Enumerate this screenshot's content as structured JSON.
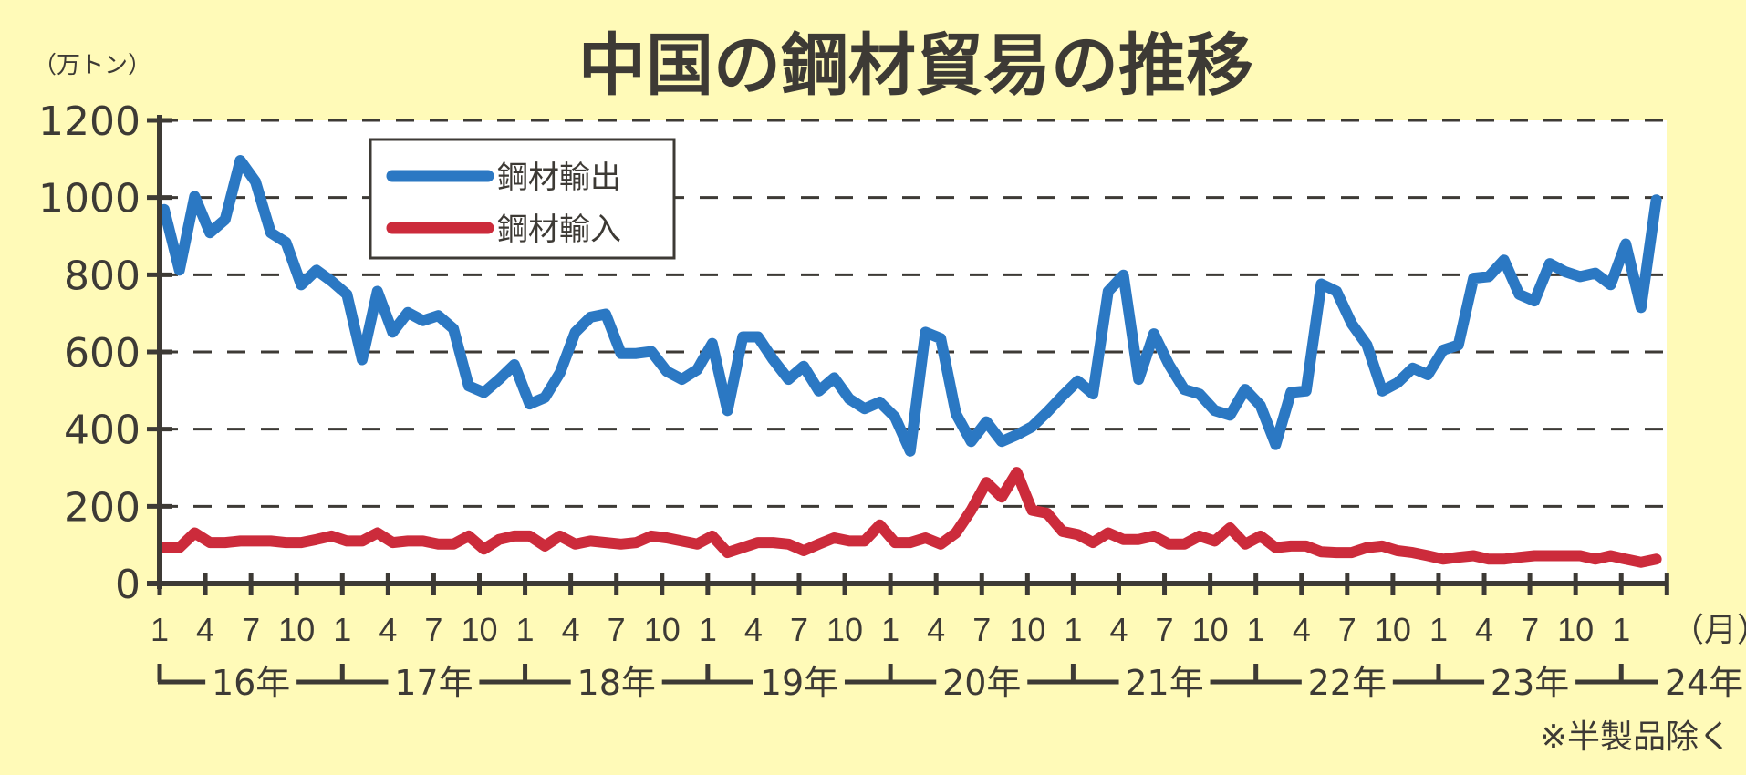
{
  "chart_data": {
    "type": "line",
    "title": "中国の鋼材貿易の推移",
    "ylabel": "（万トン）",
    "xlabel": "（月）",
    "note": "※半製品除く",
    "ylim": [
      0,
      1200
    ],
    "yticks": [
      0,
      200,
      400,
      600,
      800,
      1000,
      1200
    ],
    "grid": true,
    "legend_position": "top-left",
    "x_tick_labels": [
      "1",
      "4",
      "7",
      "10",
      "1",
      "4",
      "7",
      "10",
      "1",
      "4",
      "7",
      "10",
      "1",
      "4",
      "7",
      "10",
      "1",
      "4",
      "7",
      "10",
      "1",
      "4",
      "7",
      "10",
      "1",
      "4",
      "7",
      "10",
      "1",
      "4",
      "7",
      "10",
      "1"
    ],
    "year_labels": [
      "16年",
      "17年",
      "18年",
      "19年",
      "20年",
      "21年",
      "22年",
      "23年",
      "24年"
    ],
    "x": [
      "2016-01",
      "2016-02",
      "2016-03",
      "2016-04",
      "2016-05",
      "2016-06",
      "2016-07",
      "2016-08",
      "2016-09",
      "2016-10",
      "2016-11",
      "2016-12",
      "2017-01",
      "2017-02",
      "2017-03",
      "2017-04",
      "2017-05",
      "2017-06",
      "2017-07",
      "2017-08",
      "2017-09",
      "2017-10",
      "2017-11",
      "2017-12",
      "2018-01",
      "2018-02",
      "2018-03",
      "2018-04",
      "2018-05",
      "2018-06",
      "2018-07",
      "2018-08",
      "2018-09",
      "2018-10",
      "2018-11",
      "2018-12",
      "2019-01",
      "2019-02",
      "2019-03",
      "2019-04",
      "2019-05",
      "2019-06",
      "2019-07",
      "2019-08",
      "2019-09",
      "2019-10",
      "2019-11",
      "2019-12",
      "2020-01",
      "2020-02",
      "2020-03",
      "2020-04",
      "2020-05",
      "2020-06",
      "2020-07",
      "2020-08",
      "2020-09",
      "2020-10",
      "2020-11",
      "2020-12",
      "2021-01",
      "2021-02",
      "2021-03",
      "2021-04",
      "2021-05",
      "2021-06",
      "2021-07",
      "2021-08",
      "2021-09",
      "2021-10",
      "2021-11",
      "2021-12",
      "2022-01",
      "2022-02",
      "2022-03",
      "2022-04",
      "2022-05",
      "2022-06",
      "2022-07",
      "2022-08",
      "2022-09",
      "2022-10",
      "2022-11",
      "2022-12",
      "2023-01",
      "2023-02",
      "2023-03",
      "2023-04",
      "2023-05",
      "2023-06",
      "2023-07",
      "2023-08",
      "2023-09",
      "2023-10",
      "2023-11",
      "2023-12",
      "2024-01",
      "2024-02",
      "2024-03"
    ],
    "series": [
      {
        "name": "鋼材輸出",
        "color": "#2b78c3",
        "values": [
          969,
          812,
          1003,
          909,
          943,
          1096,
          1041,
          909,
          884,
          774,
          812,
          783,
          749,
          580,
          757,
          651,
          702,
          681,
          694,
          660,
          512,
          495,
          529,
          567,
          465,
          482,
          546,
          651,
          690,
          698,
          596,
          596,
          601,
          550,
          529,
          554,
          622,
          448,
          639,
          639,
          580,
          529,
          563,
          499,
          533,
          478,
          453,
          470,
          431,
          343,
          651,
          635,
          440,
          368,
          419,
          368,
          385,
          406,
          444,
          486,
          525,
          491,
          757,
          799,
          529,
          647,
          567,
          503,
          491,
          448,
          436,
          503,
          461,
          360,
          495,
          499,
          776,
          757,
          673,
          618,
          499,
          520,
          558,
          541,
          605,
          618,
          791,
          795,
          838,
          749,
          732,
          829,
          808,
          795,
          804,
          774,
          880,
          715,
          994
        ]
      },
      {
        "name": "鋼材輸入",
        "color": "#cc2b3b",
        "values": [
          93,
          93,
          131,
          106,
          106,
          110,
          110,
          110,
          106,
          106,
          114,
          123,
          110,
          110,
          131,
          106,
          110,
          110,
          102,
          102,
          123,
          89,
          114,
          123,
          123,
          97,
          123,
          102,
          110,
          106,
          102,
          106,
          123,
          118,
          110,
          102,
          123,
          80,
          93,
          106,
          106,
          102,
          85,
          102,
          118,
          110,
          110,
          152,
          106,
          106,
          118,
          102,
          131,
          190,
          262,
          224,
          288,
          190,
          182,
          135,
          127,
          106,
          131,
          114,
          114,
          123,
          102,
          102,
          123,
          110,
          144,
          102,
          123,
          93,
          97,
          97,
          82,
          80,
          80,
          93,
          97,
          85,
          80,
          72,
          63,
          68,
          72,
          63,
          63,
          68,
          72,
          72,
          72,
          72,
          63,
          72,
          63,
          55,
          63
        ]
      }
    ]
  },
  "colors": {
    "background": "#fffab8",
    "plot": "#ffffff",
    "ink": "#3d3a35"
  }
}
